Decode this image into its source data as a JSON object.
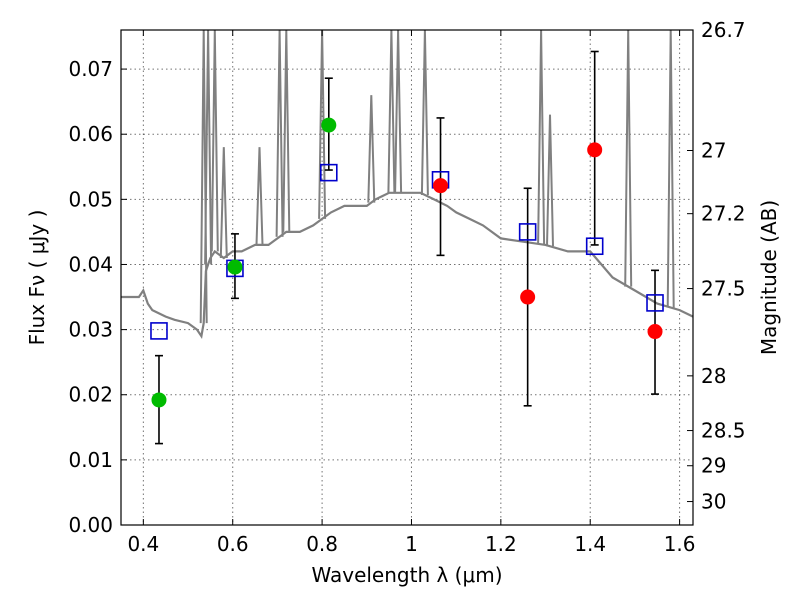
{
  "chart_data": {
    "type": "scatter",
    "xlabel": "Wavelength  λ (μm)",
    "ylabel": "Flux  Fν  ( μJy )",
    "ylabel_right": "Magnitude (AB)",
    "xlim": [
      0.35,
      1.63
    ],
    "ylim": [
      0.0,
      0.076
    ],
    "x_ticks": [
      0.4,
      0.6,
      0.8,
      1.0,
      1.2,
      1.4,
      1.6
    ],
    "x_tick_labels": [
      "0.4",
      "0.6",
      "0.8",
      "1",
      "1.2",
      "1.4",
      "1.6"
    ],
    "y_ticks": [
      0.0,
      0.01,
      0.02,
      0.03,
      0.04,
      0.05,
      0.06,
      0.07
    ],
    "y_tick_labels": [
      "0.00",
      "0.01",
      "0.02",
      "0.03",
      "0.04",
      "0.05",
      "0.06",
      "0.07"
    ],
    "right_ticks": [
      {
        "label": "26.7",
        "flux": 0.076
      },
      {
        "label": "27",
        "flux": 0.0575
      },
      {
        "label": "27.2",
        "flux": 0.0478
      },
      {
        "label": "27.5",
        "flux": 0.0363
      },
      {
        "label": "28",
        "flux": 0.0229
      },
      {
        "label": "28.5",
        "flux": 0.0145
      },
      {
        "label": "29",
        "flux": 0.0091
      },
      {
        "label": "30",
        "flux": 0.0036
      }
    ],
    "grid": true,
    "colors": {
      "spectrum": "#808080",
      "green": "#00bb00",
      "red": "#ff0000",
      "model": "#0000cc",
      "errorbar": "#000000"
    },
    "series": [
      {
        "kind": "spectrum",
        "x": [
          0.35,
          0.37,
          0.39,
          0.4,
          0.41,
          0.42,
          0.45,
          0.47,
          0.5,
          0.52,
          0.53,
          0.535,
          0.54,
          0.545,
          0.55,
          0.56,
          0.58,
          0.6,
          0.62,
          0.65,
          0.68,
          0.7,
          0.72,
          0.75,
          0.78,
          0.8,
          0.82,
          0.85,
          0.88,
          0.9,
          0.92,
          0.95,
          0.98,
          1.0,
          1.02,
          1.05,
          1.08,
          1.1,
          1.13,
          1.16,
          1.2,
          1.25,
          1.3,
          1.35,
          1.4,
          1.45,
          1.5,
          1.55,
          1.6,
          1.63
        ],
        "y": [
          0.035,
          0.035,
          0.035,
          0.036,
          0.034,
          0.033,
          0.032,
          0.0315,
          0.031,
          0.03,
          0.029,
          0.031,
          0.039,
          0.04,
          0.041,
          0.042,
          0.041,
          0.042,
          0.042,
          0.043,
          0.043,
          0.044,
          0.045,
          0.045,
          0.046,
          0.047,
          0.048,
          0.049,
          0.049,
          0.049,
          0.05,
          0.051,
          0.051,
          0.051,
          0.051,
          0.05,
          0.049,
          0.048,
          0.047,
          0.046,
          0.044,
          0.0435,
          0.043,
          0.042,
          0.042,
          0.038,
          0.036,
          0.034,
          0.033,
          0.032
        ]
      },
      {
        "kind": "emission_lines",
        "x": [
          0.535,
          0.545,
          0.56,
          0.58,
          0.66,
          0.705,
          0.72,
          0.8,
          0.91,
          0.955,
          0.97,
          1.03,
          1.29,
          1.31,
          1.485,
          1.58
        ],
        "peak": [
          0.076,
          0.076,
          0.076,
          0.058,
          0.058,
          0.076,
          0.076,
          0.076,
          0.066,
          0.076,
          0.076,
          0.076,
          0.076,
          0.063,
          0.076,
          0.076
        ]
      },
      {
        "kind": "green_points",
        "x": [
          0.435,
          0.605,
          0.815
        ],
        "y": [
          0.0192,
          0.0396,
          0.0614
        ],
        "yerr": [
          [
            0.0125,
            0.026
          ],
          [
            0.0348,
            0.0447
          ],
          [
            0.0545,
            0.0686
          ]
        ]
      },
      {
        "kind": "red_points",
        "x": [
          1.065,
          1.26,
          1.41,
          1.545
        ],
        "y": [
          0.0521,
          0.035,
          0.0576,
          0.0297
        ],
        "yerr": [
          [
            0.0414,
            0.0625
          ],
          [
            0.0183,
            0.0517
          ],
          [
            0.043,
            0.0727
          ],
          [
            0.0201,
            0.0391
          ]
        ]
      },
      {
        "kind": "model_squares",
        "x": [
          0.435,
          0.605,
          0.815,
          1.065,
          1.26,
          1.41,
          1.545
        ],
        "y": [
          0.0298,
          0.0394,
          0.0541,
          0.053,
          0.045,
          0.0428,
          0.0341
        ]
      }
    ]
  }
}
